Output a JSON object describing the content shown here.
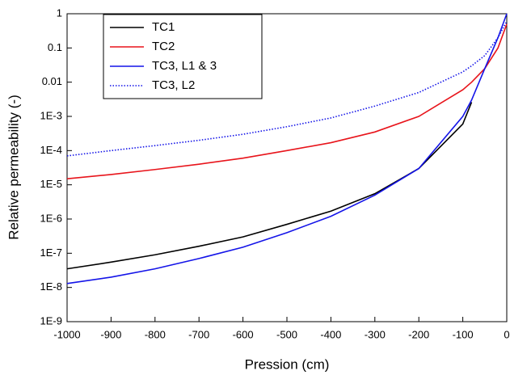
{
  "chart_data": {
    "type": "line",
    "x_label": "Pression (cm)",
    "y_label": "Relative permeability (-)",
    "x": [
      -1000,
      -900,
      -800,
      -700,
      -600,
      -500,
      -400,
      -300,
      -200,
      -100,
      -80,
      -50,
      -20,
      0
    ],
    "series": [
      {
        "name": "TC1",
        "color": "#000000",
        "style": "solid",
        "values": [
          3.5e-08,
          5.5e-08,
          9e-08,
          1.6e-07,
          3e-07,
          7e-07,
          1.7e-06,
          5.5e-06,
          3e-05,
          0.0006,
          0.0026,
          null,
          null,
          null
        ]
      },
      {
        "name": "TC2",
        "color": "#e8141b",
        "style": "solid",
        "values": [
          1.5e-05,
          2e-05,
          2.8e-05,
          4e-05,
          6e-05,
          0.0001,
          0.00017,
          0.00035,
          0.001,
          0.006,
          0.01,
          0.025,
          0.1,
          0.5
        ]
      },
      {
        "name": "TC3, L1 & 3",
        "color": "#1414e8",
        "style": "solid",
        "values": [
          1.3e-08,
          2e-08,
          3.5e-08,
          7e-08,
          1.5e-07,
          4e-07,
          1.2e-06,
          5e-06,
          3e-05,
          0.001,
          0.003,
          0.025,
          0.2,
          1
        ]
      },
      {
        "name": "TC3, L2",
        "color": "#1414e8",
        "style": "dotted",
        "values": [
          7e-05,
          0.0001,
          0.00014,
          0.0002,
          0.0003,
          0.0005,
          0.0009,
          0.002,
          0.005,
          0.02,
          0.03,
          0.06,
          0.2,
          0.6
        ]
      }
    ],
    "xlim": [
      -1000,
      0
    ],
    "xticks": [
      -1000,
      -900,
      -800,
      -700,
      -600,
      -500,
      -400,
      -300,
      -200,
      -100,
      0
    ],
    "ylim": [
      1e-09,
      1
    ],
    "yscale": "log",
    "yticks": [
      {
        "value": 1e-09,
        "label": "1E-9"
      },
      {
        "value": 1e-08,
        "label": "1E-8"
      },
      {
        "value": 1e-07,
        "label": "1E-7"
      },
      {
        "value": 1e-06,
        "label": "1E-6"
      },
      {
        "value": 1e-05,
        "label": "1E-5"
      },
      {
        "value": 0.0001,
        "label": "1E-4"
      },
      {
        "value": 0.001,
        "label": "1E-3"
      },
      0.01,
      0.1,
      1
    ],
    "legend": "upper-left"
  }
}
